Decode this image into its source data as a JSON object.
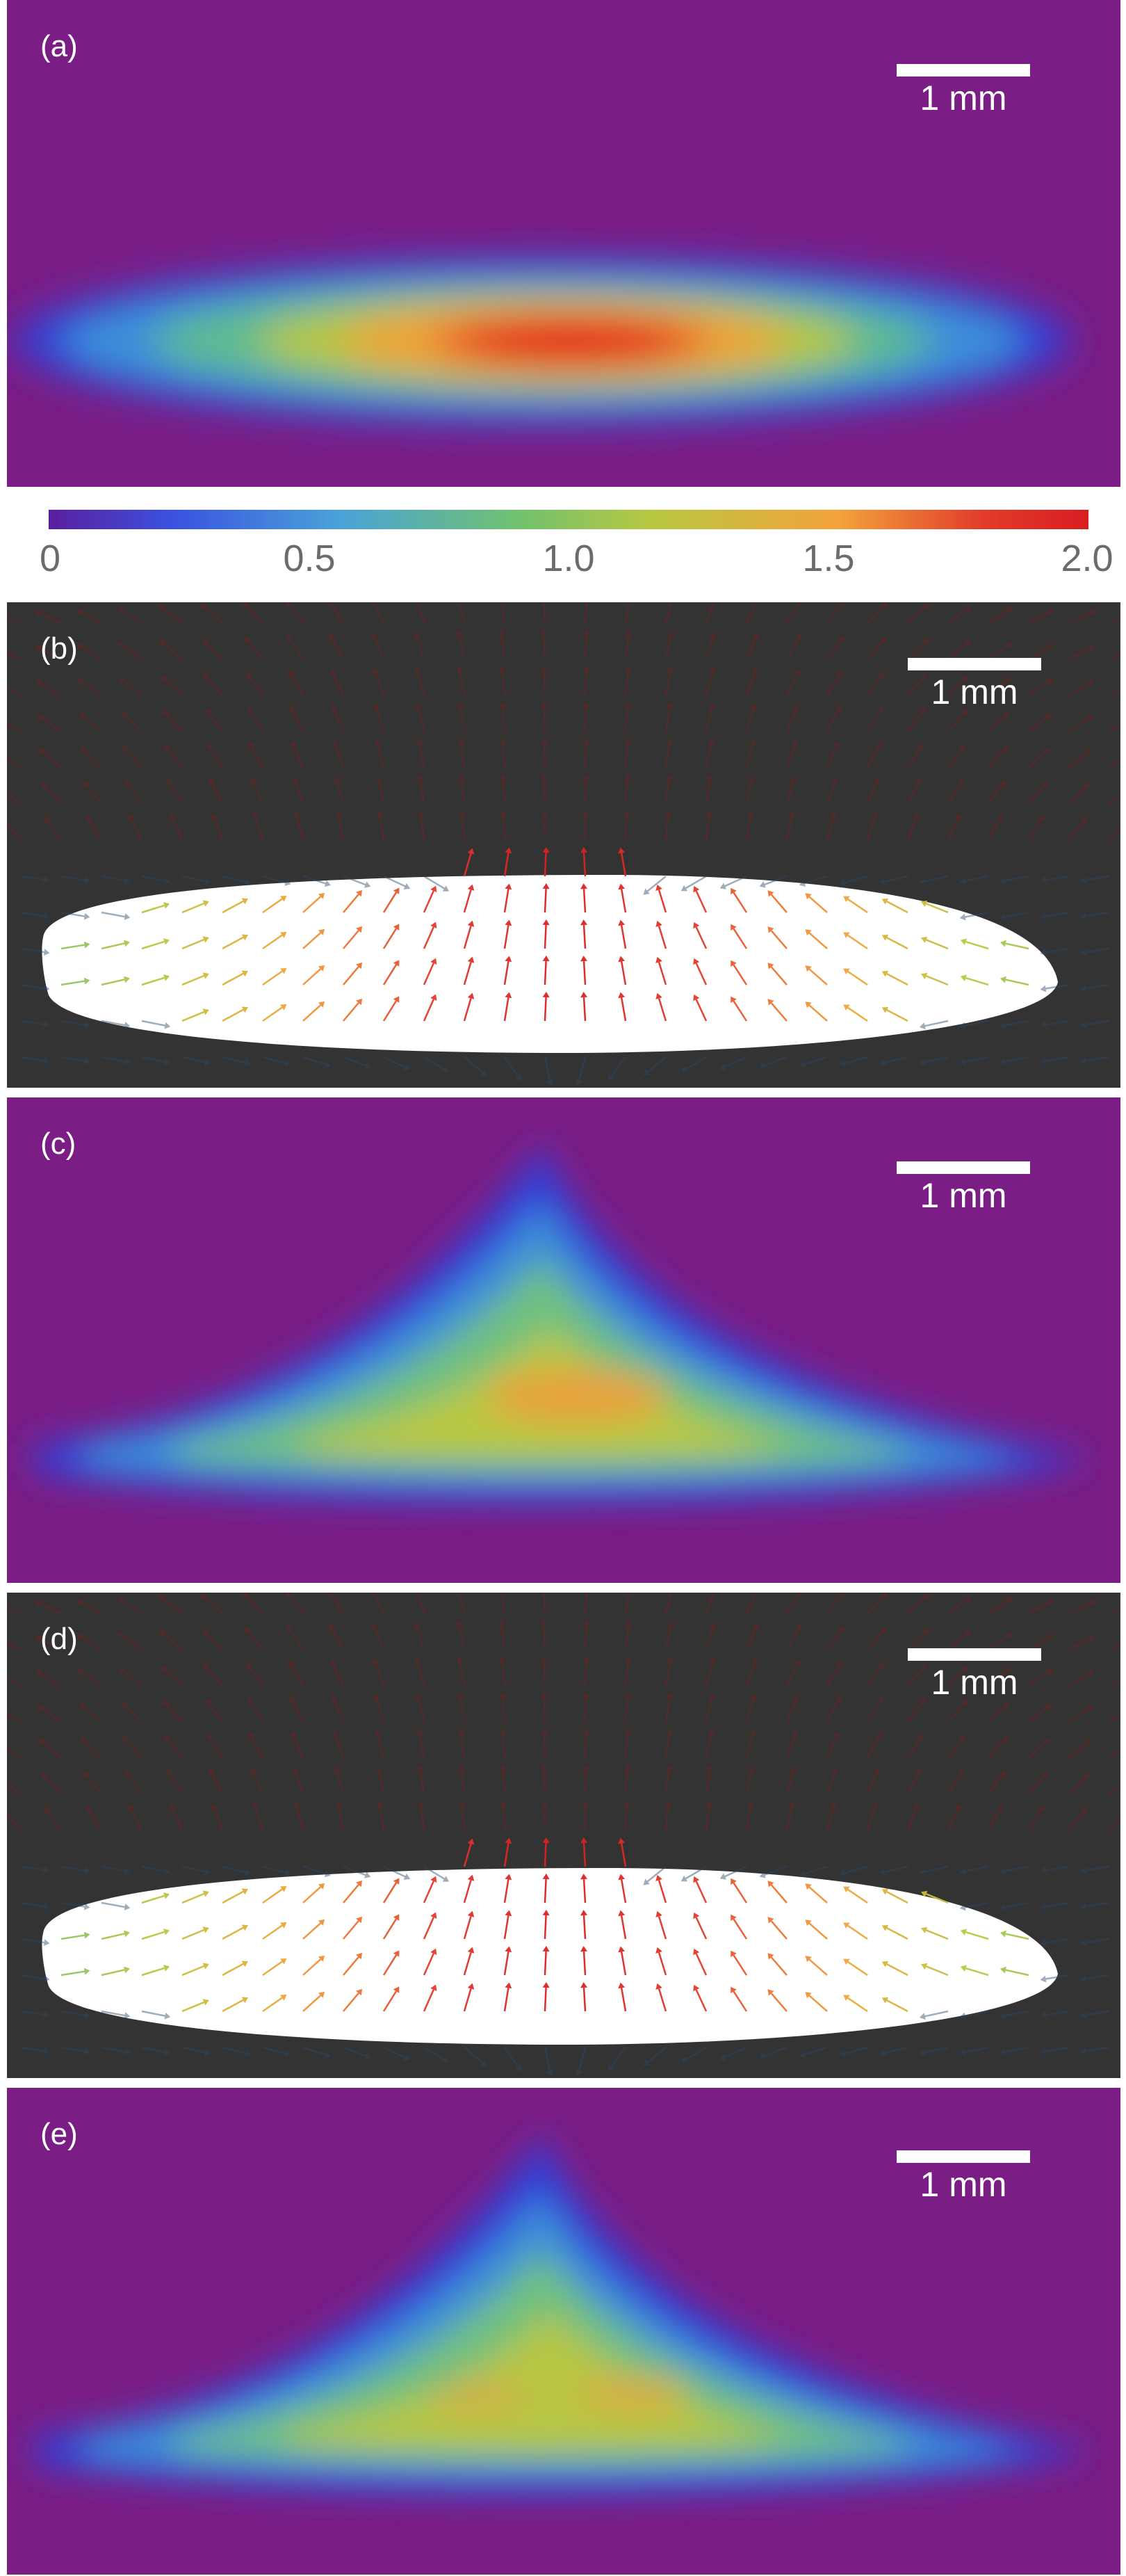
{
  "panels": {
    "a": {
      "label": "(a)",
      "scale": "1 mm"
    },
    "b": {
      "label": "(b)",
      "scale": "1 mm"
    },
    "c": {
      "label": "(c)",
      "scale": "1 mm"
    },
    "d": {
      "label": "(d)",
      "scale": "1 mm"
    },
    "e": {
      "label": "(e)",
      "scale": "1 mm"
    }
  },
  "colorbar": {
    "ticks": [
      "0",
      "0.5",
      "1.0",
      "1.5",
      "2.0"
    ],
    "range": [
      0,
      2.0
    ],
    "colors": [
      "#5b1e9e",
      "#3a52e0",
      "#4aa3d8",
      "#70c170",
      "#b8c840",
      "#f3a23a",
      "#e13b2a",
      "#d91d22"
    ]
  },
  "colors": {
    "heatmap_background": "#7a1d85",
    "vector_background": "#333333",
    "drop": "#ffffff"
  }
}
